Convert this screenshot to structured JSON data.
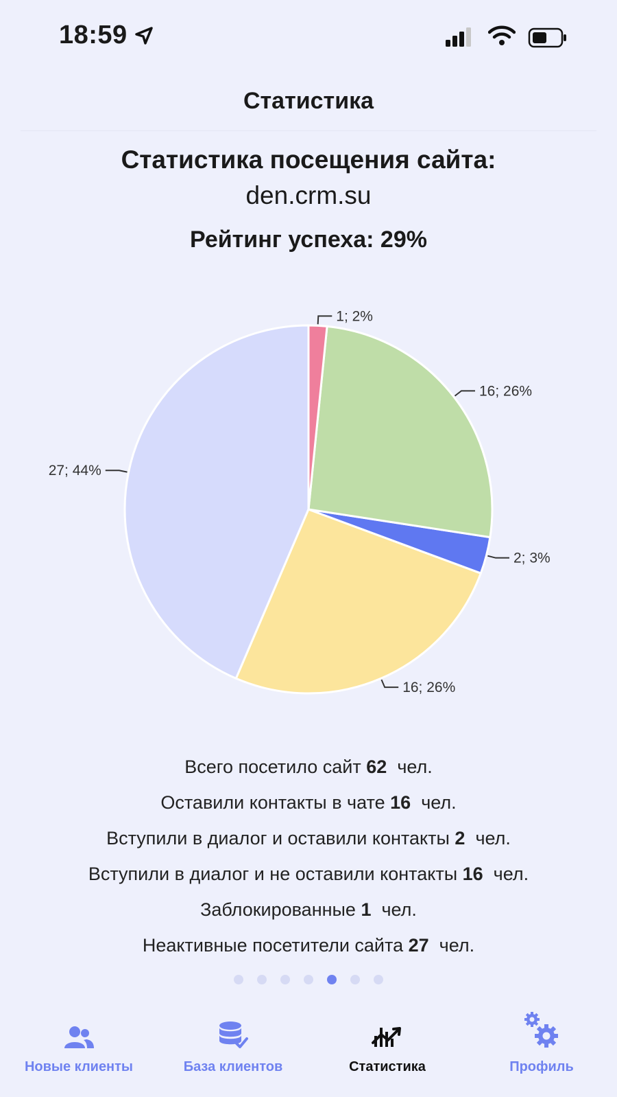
{
  "status_bar": {
    "time": "18:59"
  },
  "nav": {
    "title": "Статистика"
  },
  "page": {
    "title_line1": "Статистика посещения сайта:",
    "title_line2": "den.crm.su",
    "rating": "Рейтинг успеха: 29%"
  },
  "chart_data": {
    "type": "pie",
    "slices": [
      {
        "value": 27,
        "percent": 44,
        "label": "27; 44%",
        "color": "#d6dbfc"
      },
      {
        "value": 16,
        "percent": 26,
        "label": "16; 26%",
        "color": "#fce59c"
      },
      {
        "value": 2,
        "percent": 3,
        "label": "2; 3%",
        "color": "#5f78f1"
      },
      {
        "value": 16,
        "percent": 26,
        "label": "16; 26%",
        "color": "#bfdda8"
      },
      {
        "value": 1,
        "percent": 2,
        "label": "1; 2%",
        "color": "#ef7f9c"
      }
    ]
  },
  "stats": [
    {
      "label": "Всего посетило сайт",
      "value": "62",
      "unit": "чел."
    },
    {
      "label": "Оставили контакты в чате",
      "value": "16",
      "unit": "чел."
    },
    {
      "label": "Вступили в диалог и оставили контакты",
      "value": "2",
      "unit": "чел."
    },
    {
      "label": "Вступили в диалог и не оставили контакты",
      "value": "16",
      "unit": "чел."
    },
    {
      "label": "Заблокированные",
      "value": "1",
      "unit": "чел."
    },
    {
      "label": "Неактивные посетители сайта",
      "value": "27",
      "unit": "чел."
    }
  ],
  "pager": {
    "count": 7,
    "active_index": 4
  },
  "tabs": [
    {
      "label": "Новые клиенты",
      "icon": "users-icon"
    },
    {
      "label": "База клиентов",
      "icon": "database-icon"
    },
    {
      "label": "Статистика",
      "icon": "chart-icon",
      "active": true
    },
    {
      "label": "Профиль",
      "icon": "gears-icon"
    }
  ],
  "colors": {
    "accent": "#6f82f0",
    "background": "#eef0fc"
  }
}
